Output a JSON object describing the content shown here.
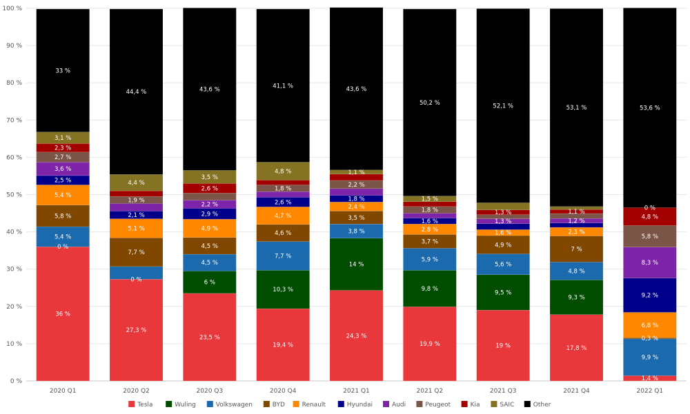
{
  "chart_data": {
    "type": "bar",
    "stacked": true,
    "title": "",
    "xlabel": "",
    "ylabel": "",
    "ylim": [
      0,
      100
    ],
    "y_ticks": [
      "0 %",
      "10 %",
      "20 %",
      "30 %",
      "40 %",
      "50 %",
      "60 %",
      "70 %",
      "80 %",
      "90 %",
      "100 %"
    ],
    "grid": true,
    "legend_position": "bottom",
    "categories": [
      "2020 Q1",
      "2020 Q2",
      "2020 Q3",
      "2020 Q4",
      "2021 Q1",
      "2021 Q2",
      "2021 Q3",
      "2021 Q4",
      "2022 Q1"
    ],
    "series": [
      {
        "name": "Tesla",
        "color": "#e8383b",
        "values": [
          36,
          27.3,
          23.5,
          19.4,
          24.3,
          19.9,
          19,
          17.8,
          1.4
        ],
        "labels": [
          "36 %",
          "27,3 %",
          "23,5 %",
          "19,4 %",
          "24,3 %",
          "19,9 %",
          "19 %",
          "17,8 %",
          "1,4 %"
        ]
      },
      {
        "name": "Wuling",
        "color": "#004d00",
        "values": [
          0,
          0,
          6,
          10.3,
          14,
          9.8,
          9.5,
          9.3,
          0
        ],
        "labels": [
          "0 %",
          "0 %",
          "6 %",
          "10,3 %",
          "14 %",
          "9,8 %",
          "9,5 %",
          "9,3 %",
          ""
        ]
      },
      {
        "name": "Volkswagen",
        "color": "#1a6aad",
        "values": [
          5.4,
          3.4,
          4.5,
          7.7,
          3.8,
          5.9,
          5.6,
          4.8,
          9.9
        ],
        "labels": [
          "5,4 %",
          "",
          "4,5 %",
          "7,7 %",
          "3,8 %",
          "5,9 %",
          "5,6 %",
          "4,8 %",
          "9,9 %"
        ]
      },
      {
        "name": "BYD",
        "color": "#7f4700",
        "values": [
          5.8,
          7.7,
          4.5,
          4.6,
          3.5,
          3.7,
          4.9,
          7,
          0.3
        ],
        "labels": [
          "5,8 %",
          "7,7 %",
          "4,5 %",
          "4,6 %",
          "3,5 %",
          "3,7 %",
          "4,9 %",
          "7 %",
          "0,3 %"
        ]
      },
      {
        "name": "Renault",
        "color": "#ff8800",
        "values": [
          5.4,
          5.1,
          4.9,
          4.7,
          2.4,
          2.8,
          1.6,
          2.3,
          6.8
        ],
        "labels": [
          "5,4 %",
          "5,1 %",
          "4,9 %",
          "4,7 %",
          "2,4 %",
          "2,8 %",
          "1,6 %",
          "2,3 %",
          "6,8 %"
        ]
      },
      {
        "name": "Hyundai",
        "color": "#00008b",
        "values": [
          2.5,
          2.1,
          2.9,
          2.6,
          1.8,
          1.6,
          1.6,
          1.2,
          9.2
        ],
        "labels": [
          "2,5 %",
          "2,1 %",
          "2,9 %",
          "2,6 %",
          "1,8 %",
          "1,6 %",
          "",
          "",
          "9,2 %"
        ]
      },
      {
        "name": "Audi",
        "color": "#7e24a8",
        "values": [
          3.6,
          2,
          2.2,
          1.5,
          1.8,
          1.3,
          1.3,
          1.2,
          8.3
        ],
        "labels": [
          "3,6 %",
          "",
          "2,2 %",
          "",
          "",
          "",
          "1,3 %",
          "1,2 %",
          "8,3 %"
        ]
      },
      {
        "name": "Peugeot",
        "color": "#7a5548",
        "values": [
          2.7,
          1.9,
          1.9,
          1.8,
          2.2,
          1.8,
          1.1,
          1.3,
          5.8
        ],
        "labels": [
          "2,7 %",
          "1,9 %",
          "",
          "1,8 %",
          "2,2 %",
          "1,8 %",
          "",
          "",
          "5,8 %"
        ]
      },
      {
        "name": "Kia",
        "color": "#a30000",
        "values": [
          2.3,
          1.5,
          2.6,
          1.3,
          1.7,
          1.3,
          1.3,
          1.1,
          4.8
        ],
        "labels": [
          "2,3 %",
          "",
          "2,6 %",
          "",
          "",
          "",
          "1,3 %",
          "1,1 %",
          "4,8 %"
        ]
      },
      {
        "name": "SAIC",
        "color": "#857324",
        "values": [
          3.1,
          4.4,
          3.5,
          4.8,
          1.1,
          1.5,
          1.9,
          0.8,
          0
        ],
        "labels": [
          "3,1 %",
          "4,4 %",
          "3,5 %",
          "4,8 %",
          "1,1 %",
          "1,5 %",
          "",
          "",
          "0 %"
        ]
      },
      {
        "name": "Other",
        "color": "#000000",
        "values": [
          33,
          44.4,
          43.6,
          41.1,
          43.6,
          50.2,
          52.1,
          53.1,
          53.6
        ],
        "labels": [
          "33 %",
          "44,4 %",
          "43,6 %",
          "41,1 %",
          "43,6 %",
          "50,2 %",
          "52,1 %",
          "53,1 %",
          "53,6 %"
        ]
      }
    ]
  }
}
